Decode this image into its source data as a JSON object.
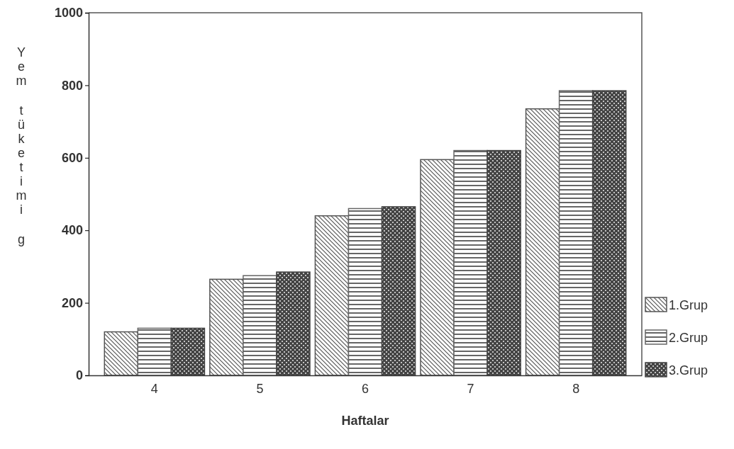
{
  "chart_data": {
    "type": "bar",
    "xlabel": "Haftalar",
    "ylabel": "Yem tüketimi g",
    "categories": [
      "4",
      "5",
      "6",
      "7",
      "8"
    ],
    "series": [
      {
        "name": "1.Grup",
        "color": "#555555",
        "values": [
          120,
          265,
          440,
          595,
          735
        ]
      },
      {
        "name": "2.Grup",
        "color": "#666666",
        "values": [
          130,
          275,
          460,
          620,
          785
        ]
      },
      {
        "name": "3.Grup",
        "color": "#444444",
        "values": [
          130,
          285,
          465,
          620,
          785
        ]
      }
    ],
    "ylim": [
      0,
      1000
    ],
    "yticks": [
      0,
      200,
      400,
      600,
      800,
      1000
    ],
    "legend": "right",
    "grid": false
  }
}
